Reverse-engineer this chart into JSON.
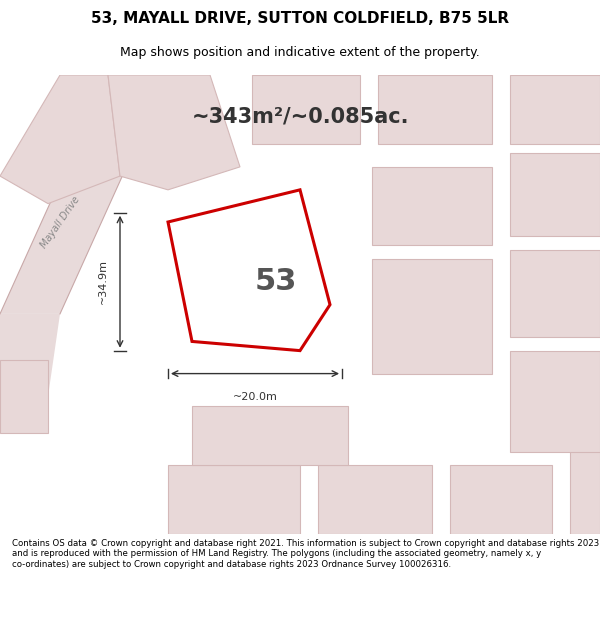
{
  "title_line1": "53, MAYALL DRIVE, SUTTON COLDFIELD, B75 5LR",
  "title_line2": "Map shows position and indicative extent of the property.",
  "area_label": "~343m²/~0.085ac.",
  "plot_number": "53",
  "dim_width": "~20.0m",
  "dim_height": "~34.9m",
  "footer_text": "Contains OS data © Crown copyright and database right 2021. This information is subject to Crown copyright and database rights 2023 and is reproduced with the permission of HM Land Registry. The polygons (including the associated geometry, namely x, y co-ordinates) are subject to Crown copyright and database rights 2023 Ordnance Survey 100026316.",
  "bg_color": "#f5f0f0",
  "map_bg": "#f7f2f2",
  "plot_outline_color": "#cc0000",
  "neighbor_color": "#e8d8d8",
  "neighbor_edge_color": "#d4b8b8",
  "road_label": "Mayall Drive",
  "figsize": [
    6.0,
    6.25
  ],
  "dpi": 100
}
